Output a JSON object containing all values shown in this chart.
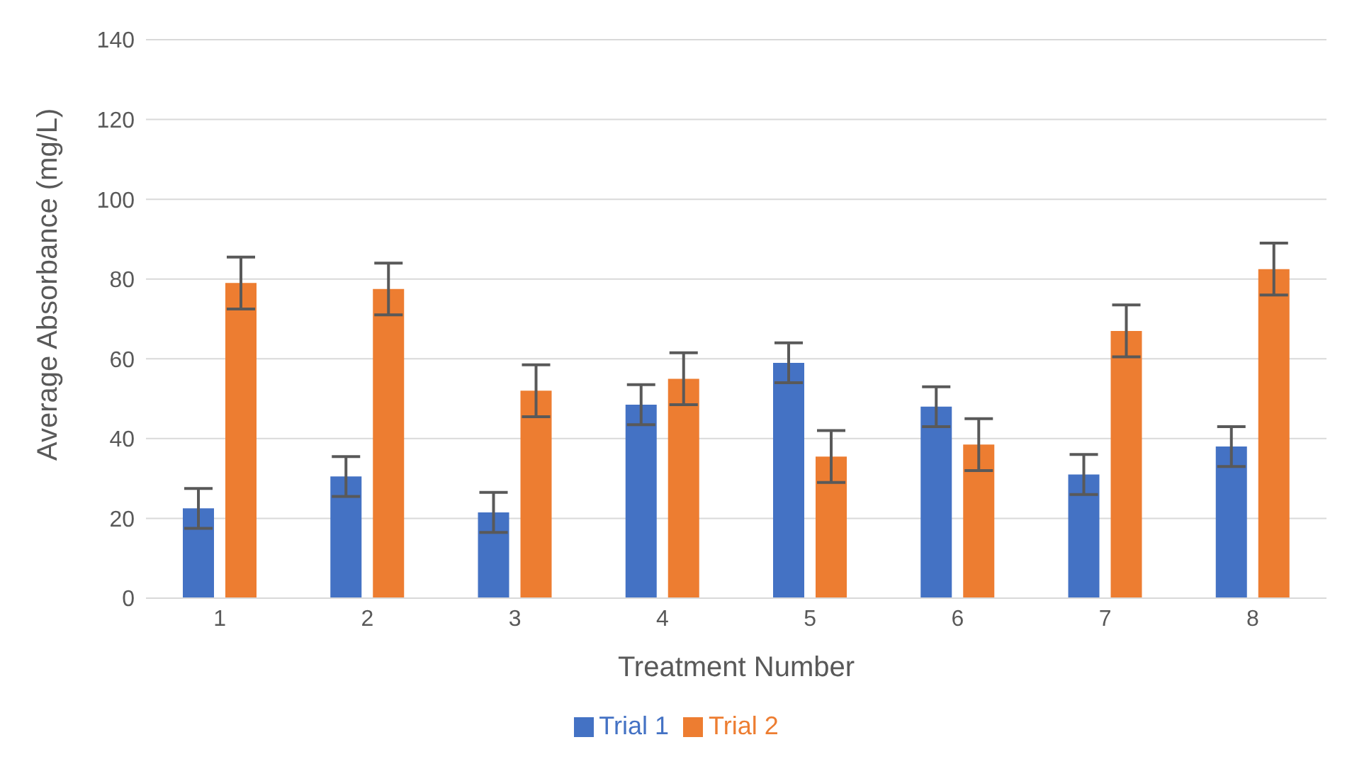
{
  "chart_data": {
    "type": "bar",
    "xlabel": "Treatment Number",
    "ylabel": "Average Absorbance (mg/L)",
    "categories": [
      "1",
      "2",
      "3",
      "4",
      "5",
      "6",
      "7",
      "8"
    ],
    "series": [
      {
        "name": "Trial 1",
        "color": "#4472c4",
        "values": [
          22.5,
          30.5,
          21.5,
          48.5,
          59,
          48,
          31,
          38
        ],
        "errors": [
          5,
          5,
          5,
          5,
          5,
          5,
          5,
          5
        ]
      },
      {
        "name": "Trial 2",
        "color": "#ed7d31",
        "values": [
          79,
          77.5,
          52,
          55,
          35.5,
          38.5,
          67,
          82.5
        ],
        "errors": [
          6.5,
          6.5,
          6.5,
          6.5,
          6.5,
          6.5,
          6.5,
          6.5
        ]
      }
    ],
    "ylim": [
      0,
      140
    ],
    "yticks": [
      0,
      20,
      40,
      60,
      80,
      100,
      120,
      140
    ],
    "grid": "y",
    "legend": "bottom"
  }
}
